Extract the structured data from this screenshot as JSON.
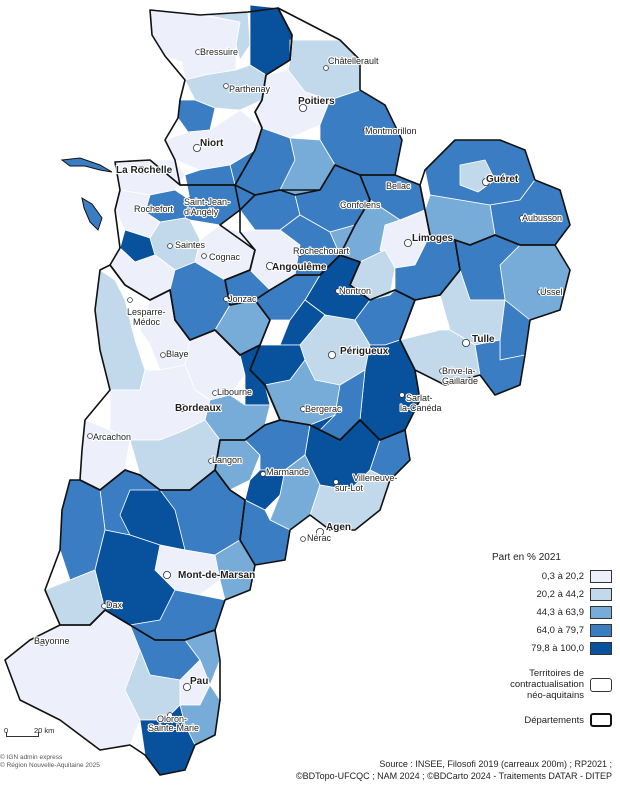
{
  "map": {
    "colors": {
      "class1": "#edf0fb",
      "class2": "#c2d9ec",
      "class3": "#77acd9",
      "class4": "#3a7dc2",
      "class5": "#08519c",
      "outline": "#333333"
    },
    "cities": [
      {
        "name": "Bressuire",
        "major": false
      },
      {
        "name": "Châtellerault",
        "major": false
      },
      {
        "name": "Parthenay",
        "major": false
      },
      {
        "name": "Poitiers",
        "major": true
      },
      {
        "name": "Montmorillon",
        "major": false
      },
      {
        "name": "Niort",
        "major": true
      },
      {
        "name": "La Rochelle",
        "major": true
      },
      {
        "name": "Guéret",
        "major": true
      },
      {
        "name": "Bellac",
        "major": false
      },
      {
        "name": "Confolens",
        "major": false
      },
      {
        "name": "Saint-Jean-",
        "major": false
      },
      {
        "name": "d'Angély",
        "major": false
      },
      {
        "name": "Rochefort",
        "major": false
      },
      {
        "name": "Aubusson",
        "major": false
      },
      {
        "name": "Saintes",
        "major": false
      },
      {
        "name": "Cognac",
        "major": false
      },
      {
        "name": "Rochechouart",
        "major": false
      },
      {
        "name": "Limoges",
        "major": true
      },
      {
        "name": "Angoulême",
        "major": true
      },
      {
        "name": "Ussel",
        "major": false
      },
      {
        "name": "Jonzac",
        "major": false
      },
      {
        "name": "Nontron",
        "major": false
      },
      {
        "name": "Lesparre-",
        "major": false
      },
      {
        "name": "Médoc",
        "major": false
      },
      {
        "name": "Tulle",
        "major": true
      },
      {
        "name": "Blaye",
        "major": false
      },
      {
        "name": "Périgueux",
        "major": true
      },
      {
        "name": "Brive-la-",
        "major": false
      },
      {
        "name": "Gaillarde",
        "major": false
      },
      {
        "name": "Libourne",
        "major": false
      },
      {
        "name": "Bordeaux",
        "major": true
      },
      {
        "name": "Sarlat-",
        "major": false
      },
      {
        "name": "la-Canéda",
        "major": false
      },
      {
        "name": "Bergerac",
        "major": false
      },
      {
        "name": "Arcachon",
        "major": false
      },
      {
        "name": "Langon",
        "major": false
      },
      {
        "name": "Marmande",
        "major": false
      },
      {
        "name": "Villeneuve-",
        "major": false
      },
      {
        "name": "sur-Lot",
        "major": false
      },
      {
        "name": "Agen",
        "major": true
      },
      {
        "name": "Nérac",
        "major": false
      },
      {
        "name": "Mont-de-Marsan",
        "major": true
      },
      {
        "name": "Dax",
        "major": false
      },
      {
        "name": "Bayonne",
        "major": false
      },
      {
        "name": "Pau",
        "major": true
      },
      {
        "name": "Oloron-",
        "major": false
      },
      {
        "name": "Sainte-Marie",
        "major": false
      }
    ]
  },
  "legend": {
    "title": "Part en % 2021",
    "classes": [
      {
        "label": "0,3 à 20,2",
        "color": "#edf0fb"
      },
      {
        "label": "20,2 à 44,2",
        "color": "#c2d9ec"
      },
      {
        "label": "44,3 à 63,9",
        "color": "#77acd9"
      },
      {
        "label": "64,0 à 79,7",
        "color": "#3a7dc2"
      },
      {
        "label": "79,8 à 100,0",
        "color": "#08519c"
      }
    ],
    "territories_line1": "Territoires de",
    "territories_line2": "contractualisation",
    "territories_line3": "néo-aquitains",
    "departments": "Départements"
  },
  "scale": {
    "zero": "0",
    "label": "20 km"
  },
  "credits": {
    "line1": "© IGN admin express",
    "line2": "© Région Nouvelle-Aquitaine 2025"
  },
  "source": {
    "line1": "Source : INSEE, Filosofi 2019 (carreaux 200m) ; RP2021 ;",
    "line2": "©BDTopo-UFCQC ; NAM 2024 ; ©BDCarto 2024 - Traitements DATAR - DITEP"
  }
}
